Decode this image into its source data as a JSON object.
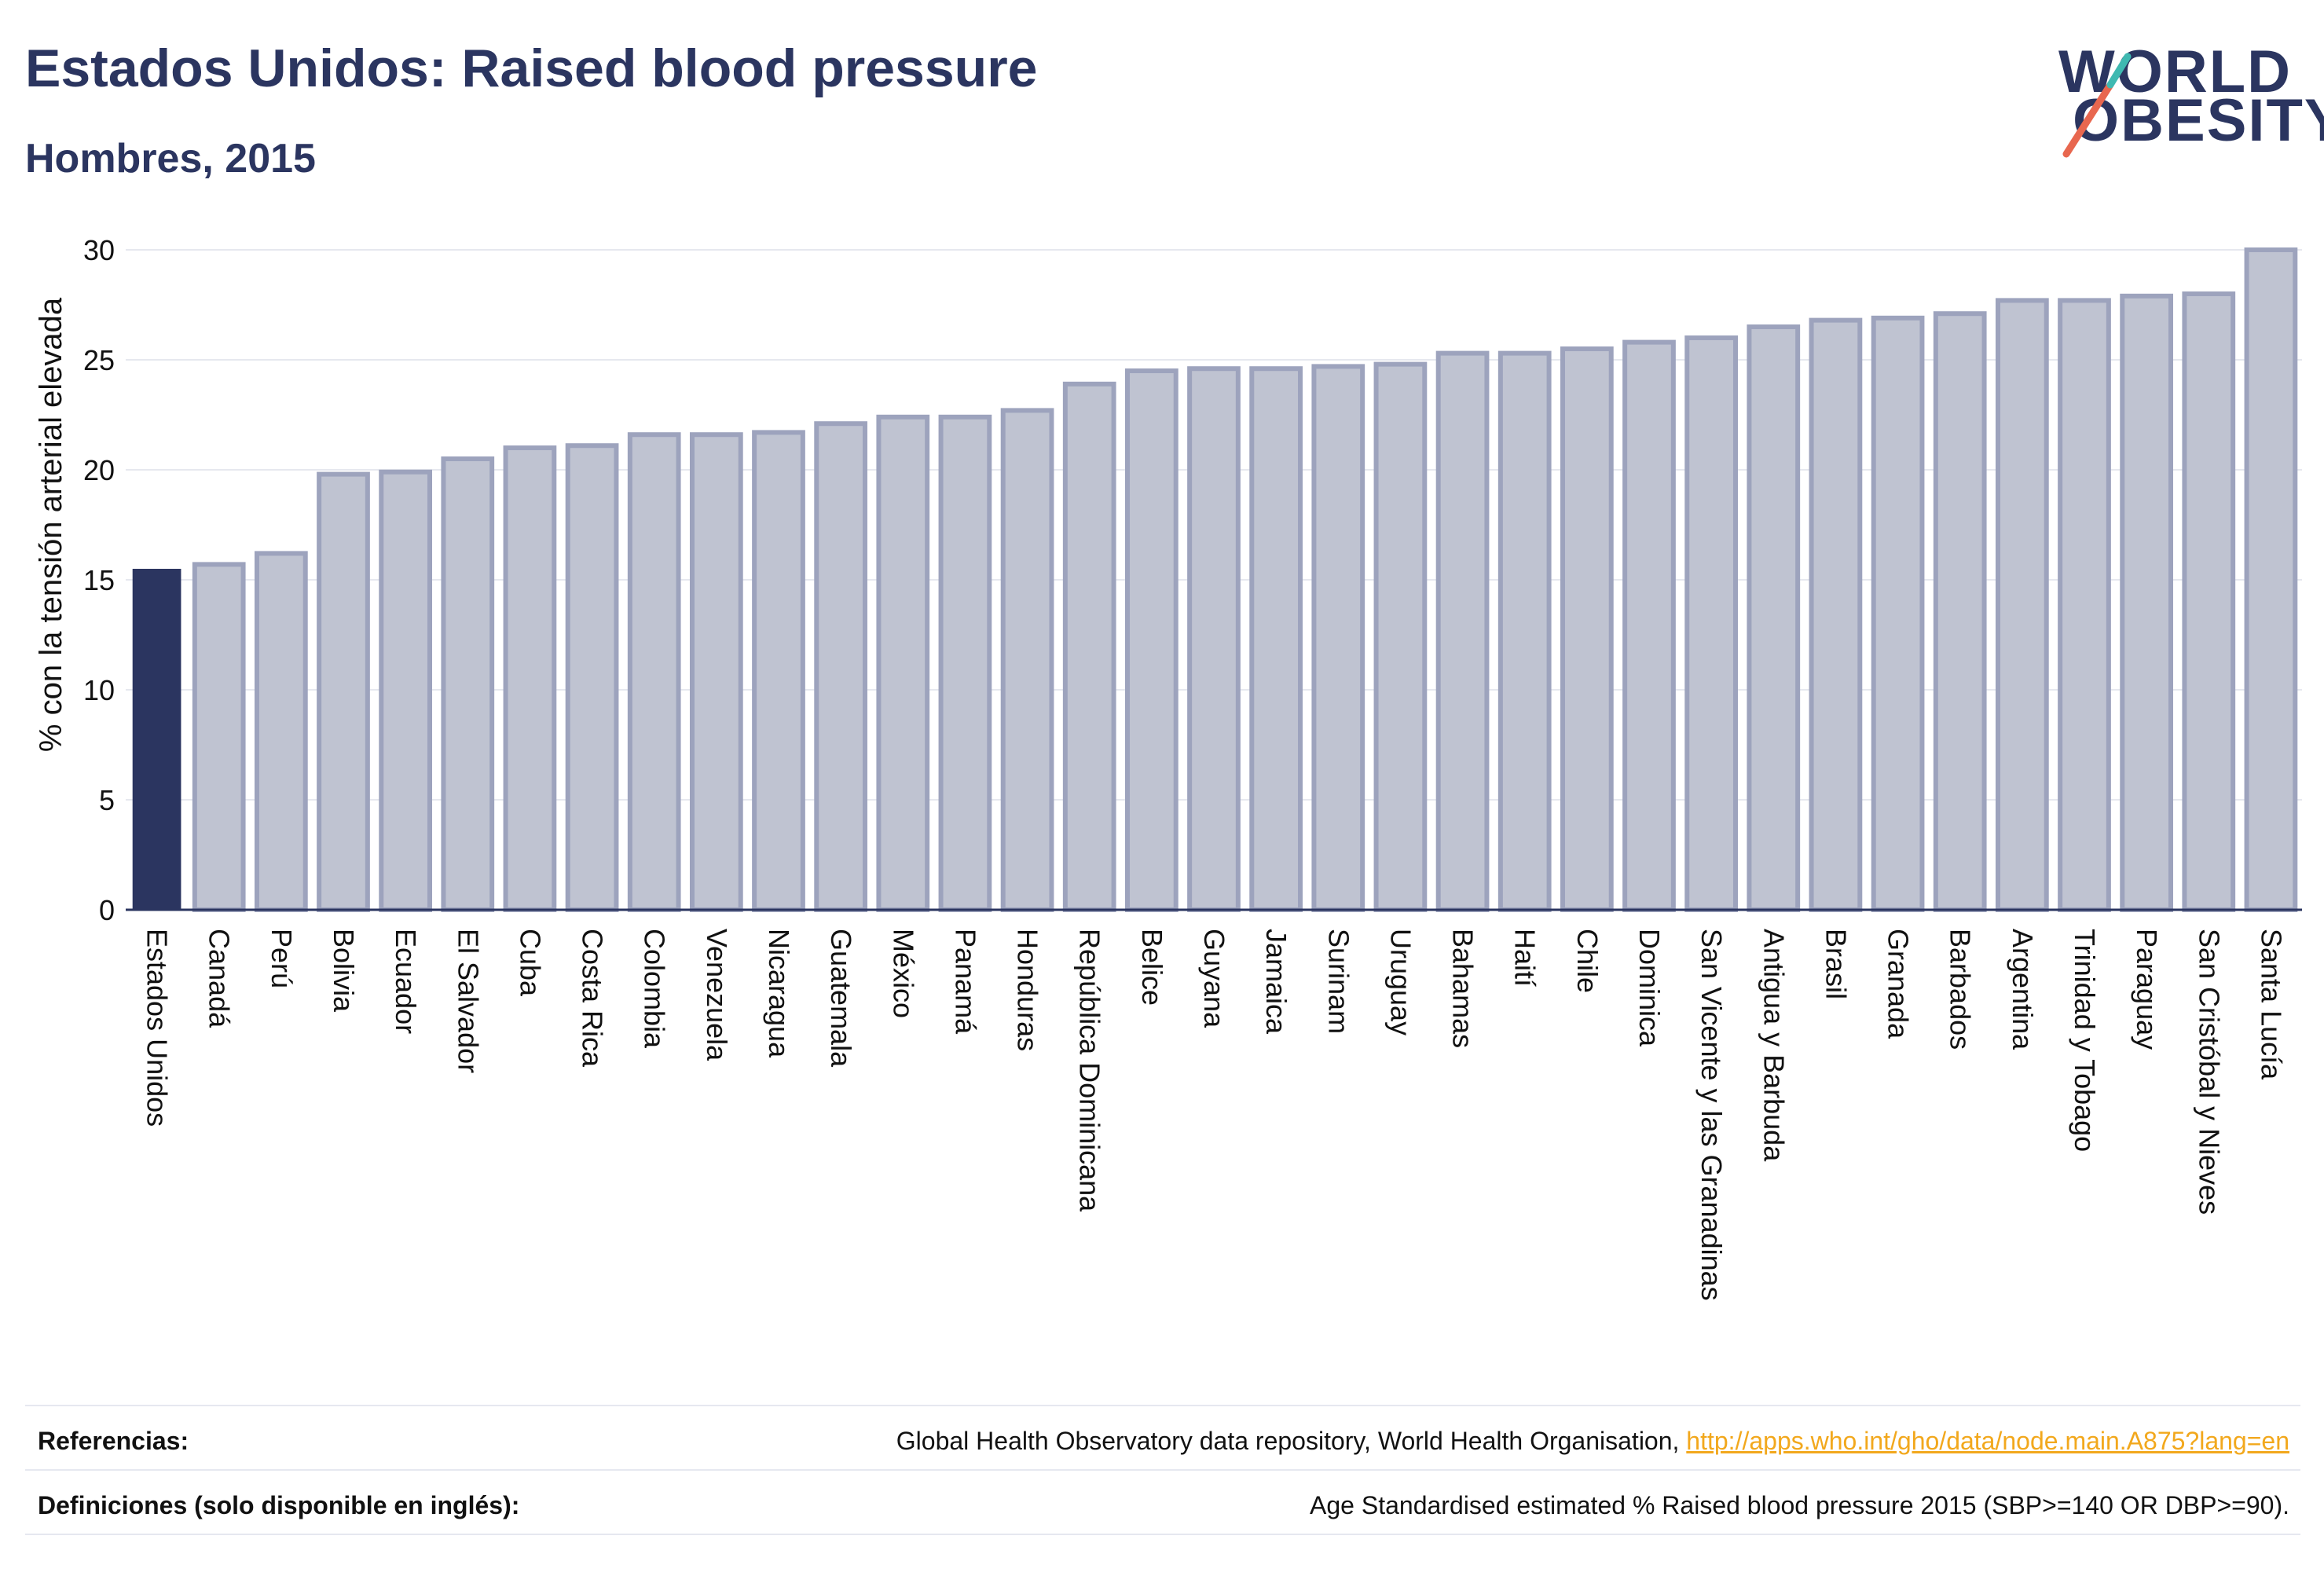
{
  "header": {
    "title": "Estados Unidos: Raised blood pressure",
    "subtitle": "Hombres, 2015"
  },
  "logo": {
    "line1": "WORLD",
    "line2": "OBESITY",
    "accent_colors": [
      "#e8674f",
      "#3fb9b1"
    ]
  },
  "chart_data": {
    "type": "bar",
    "title": "",
    "xlabel": "",
    "ylabel": "% con la tensión arterial elevada",
    "ylim": [
      0,
      30
    ],
    "yticks": [
      0,
      5,
      10,
      15,
      20,
      25,
      30
    ],
    "grid": true,
    "highlight_category": "Estados Unidos",
    "colors": {
      "highlight": "#2b3560",
      "bar_fill": "#bfc3d1",
      "bar_stroke": "#9da3bd"
    },
    "categories": [
      "Estados Unidos",
      "Canadá",
      "Perú",
      "Bolivia",
      "Ecuador",
      "El Salvador",
      "Cuba",
      "Costa Rica",
      "Colombia",
      "Venezuela",
      "Nicaragua",
      "Guatemala",
      "México",
      "Panamá",
      "Honduras",
      "República Dominicana",
      "Belice",
      "Guyana",
      "Jamaica",
      "Surinam",
      "Uruguay",
      "Bahamas",
      "Haití",
      "Chile",
      "Dominica",
      "San Vicente y las Granadinas",
      "Antigua y Barbuda",
      "Brasil",
      "Granada",
      "Barbados",
      "Argentina",
      "Trinidad y Tobago",
      "Paraguay",
      "San Cristóbal y Nieves",
      "Santa Lucía"
    ],
    "values": [
      15.5,
      15.7,
      16.2,
      19.8,
      19.9,
      20.5,
      21.0,
      21.1,
      21.6,
      21.6,
      21.7,
      22.1,
      22.4,
      22.4,
      22.7,
      23.9,
      24.5,
      24.6,
      24.6,
      24.7,
      24.8,
      25.3,
      25.3,
      25.5,
      25.8,
      26.0,
      26.5,
      26.8,
      26.9,
      27.1,
      27.7,
      27.7,
      27.9,
      28.0,
      30.0
    ]
  },
  "footer": {
    "references_label": "Referencias:",
    "references_text": "Global Health Observatory data repository, World Health Organisation, ",
    "references_link": "http://apps.who.int/gho/data/node.main.A875?lang=en",
    "definitions_label": "Definiciones (solo disponible en inglés):",
    "definitions_text": "Age Standardised estimated % Raised blood pressure 2015 (SBP>=140 OR DBP>=90)."
  }
}
